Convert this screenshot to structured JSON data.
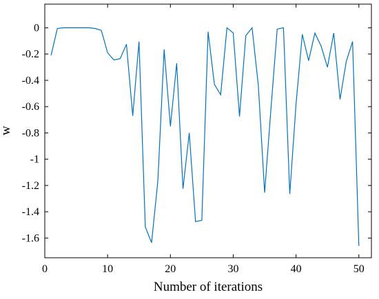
{
  "chart_data": {
    "type": "line",
    "title": "",
    "xlabel": "Number of iterations",
    "ylabel": "w",
    "xlim": [
      0,
      52
    ],
    "ylim": [
      -1.75,
      0.18
    ],
    "xticks": [
      0,
      10,
      20,
      30,
      40,
      50
    ],
    "yticks": [
      0,
      -0.2,
      -0.4,
      -0.6,
      -0.8,
      -1,
      -1.2,
      -1.4,
      -1.6
    ],
    "ytick_labels": [
      "0",
      "-0.2",
      "-0.4",
      "-0.6",
      "-0.8",
      "-1",
      "-1.2",
      "-1.4",
      "-1.6"
    ],
    "grid": false,
    "series": [
      {
        "color": "#0072bd",
        "x": [
          1,
          2,
          3,
          4,
          5,
          6,
          7,
          8,
          9,
          10,
          11,
          12,
          13,
          14,
          15,
          16,
          17,
          18,
          19,
          20,
          21,
          22,
          23,
          24,
          25,
          26,
          27,
          28,
          29,
          30,
          31,
          32,
          33,
          34,
          35,
          36,
          37,
          38,
          39,
          40,
          41,
          42,
          43,
          44,
          45,
          46,
          47,
          48,
          49,
          50
        ],
        "y": [
          -0.21,
          -0.005,
          0,
          0,
          0,
          0,
          0,
          -0.005,
          -0.02,
          -0.19,
          -0.245,
          -0.235,
          -0.125,
          -0.67,
          -0.105,
          -1.515,
          -1.635,
          -1.165,
          -0.165,
          -0.75,
          -0.27,
          -1.225,
          -0.8,
          -1.475,
          -1.465,
          -0.03,
          -0.43,
          -0.51,
          0,
          -0.04,
          -0.675,
          -0.06,
          0,
          -0.44,
          -1.255,
          -0.62,
          -0.01,
          0,
          -1.265,
          -0.58,
          -0.05,
          -0.25,
          -0.04,
          -0.14,
          -0.3,
          -0.04,
          -0.545,
          -0.255,
          -0.105,
          -1.66
        ]
      }
    ]
  }
}
